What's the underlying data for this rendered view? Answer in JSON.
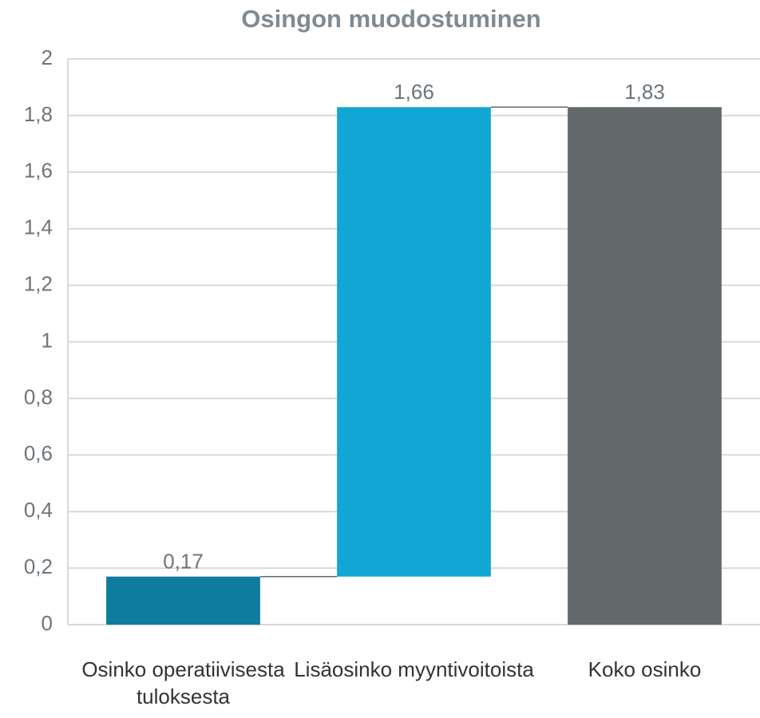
{
  "chart_data": {
    "type": "waterfall",
    "title": "Osingon muodostuminen",
    "categories": [
      "Osinko operatiivisesta tuloksesta",
      "Lisäosinko myyntivoitoista",
      "Koko osinko"
    ],
    "values": [
      0.17,
      1.66,
      1.83
    ],
    "value_labels": [
      "0,17",
      "1,66",
      "1,83"
    ],
    "colors": [
      "#0e7c9e",
      "#12a6d4",
      "#63686b"
    ],
    "ylim": [
      0,
      2
    ],
    "yticks": [
      0,
      {
        "value": 0.2,
        "label": "0,2"
      },
      {
        "value": 0.4,
        "label": "0,4"
      },
      {
        "value": 0.6,
        "label": "0,6"
      },
      {
        "value": 0.8,
        "label": "0,8"
      },
      1,
      {
        "value": 1.2,
        "label": "1,2"
      },
      {
        "value": 1.4,
        "label": "1,4"
      },
      {
        "value": 1.6,
        "label": "1,6"
      },
      {
        "value": 1.8,
        "label": "1,8"
      },
      2
    ],
    "grid": true
  }
}
